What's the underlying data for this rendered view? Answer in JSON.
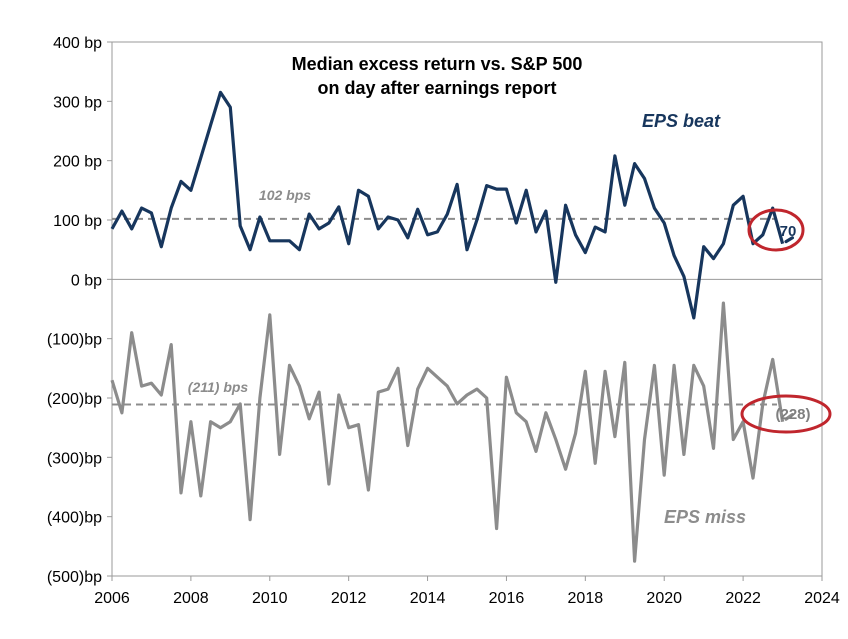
{
  "chart_data": {
    "type": "line",
    "title_line1": "Median excess return vs. S&P 500",
    "title_line2": "on day after earnings report",
    "xlim": [
      2006,
      2024
    ],
    "ylim": [
      -500,
      400
    ],
    "x_ticks": [
      {
        "value": 2006,
        "label": "2006"
      },
      {
        "value": 2008,
        "label": "2008"
      },
      {
        "value": 2010,
        "label": "2010"
      },
      {
        "value": 2012,
        "label": "2012"
      },
      {
        "value": 2014,
        "label": "2014"
      },
      {
        "value": 2016,
        "label": "2016"
      },
      {
        "value": 2018,
        "label": "2018"
      },
      {
        "value": 2020,
        "label": "2020"
      },
      {
        "value": 2022,
        "label": "2022"
      },
      {
        "value": 2024,
        "label": "2024"
      }
    ],
    "y_ticks": [
      {
        "value": 400,
        "label": "400 bp"
      },
      {
        "value": 300,
        "label": "300 bp"
      },
      {
        "value": 200,
        "label": "200 bp"
      },
      {
        "value": 100,
        "label": "100 bp"
      },
      {
        "value": 0,
        "label": "0 bp"
      },
      {
        "value": -100,
        "label": "(100)bp"
      },
      {
        "value": -200,
        "label": "(200)bp"
      },
      {
        "value": -300,
        "label": "(300)bp"
      },
      {
        "value": -400,
        "label": "(400)bp"
      },
      {
        "value": -500,
        "label": "(500)bp"
      }
    ],
    "grid": false,
    "zero_line": true,
    "series": [
      {
        "name": "EPS beat",
        "color": "#17365d",
        "average": {
          "value": 102,
          "label": "102 bps"
        },
        "latest": {
          "value": 70,
          "label": "70"
        },
        "x": [
          2006.0,
          2006.25,
          2006.5,
          2006.75,
          2007.0,
          2007.25,
          2007.5,
          2007.75,
          2008.0,
          2008.25,
          2008.5,
          2008.75,
          2009.0,
          2009.25,
          2009.5,
          2009.75,
          2010.0,
          2010.25,
          2010.5,
          2010.75,
          2011.0,
          2011.25,
          2011.5,
          2011.75,
          2012.0,
          2012.25,
          2012.5,
          2012.75,
          2013.0,
          2013.25,
          2013.5,
          2013.75,
          2014.0,
          2014.25,
          2014.5,
          2014.75,
          2015.0,
          2015.25,
          2015.5,
          2015.75,
          2016.0,
          2016.25,
          2016.5,
          2016.75,
          2017.0,
          2017.25,
          2017.5,
          2017.75,
          2018.0,
          2018.25,
          2018.5,
          2018.75,
          2019.0,
          2019.25,
          2019.5,
          2019.75,
          2020.0,
          2020.25,
          2020.5,
          2020.75,
          2021.0,
          2021.25,
          2021.5,
          2021.75,
          2022.0,
          2022.25,
          2022.5,
          2022.75,
          2023.0,
          2023.25
        ],
        "values": [
          85,
          115,
          85,
          120,
          112,
          55,
          120,
          165,
          150,
          205,
          260,
          315,
          290,
          90,
          50,
          105,
          65,
          65,
          65,
          50,
          110,
          85,
          95,
          122,
          60,
          150,
          140,
          85,
          105,
          100,
          70,
          118,
          75,
          80,
          110,
          160,
          50,
          100,
          158,
          152,
          152,
          95,
          150,
          80,
          115,
          -5,
          125,
          75,
          45,
          88,
          80,
          208,
          125,
          195,
          170,
          120,
          95,
          40,
          5,
          -65,
          55,
          35,
          60,
          125,
          140,
          60,
          75,
          120,
          60,
          70
        ]
      },
      {
        "name": "EPS miss",
        "color": "#8c8c8c",
        "average": {
          "value": -211,
          "label": "(211) bps"
        },
        "latest": {
          "value": -228,
          "label": "(228)"
        },
        "x": [
          2006.0,
          2006.25,
          2006.5,
          2006.75,
          2007.0,
          2007.25,
          2007.5,
          2007.75,
          2008.0,
          2008.25,
          2008.5,
          2008.75,
          2009.0,
          2009.25,
          2009.5,
          2009.75,
          2010.0,
          2010.25,
          2010.5,
          2010.75,
          2011.0,
          2011.25,
          2011.5,
          2011.75,
          2012.0,
          2012.25,
          2012.5,
          2012.75,
          2013.0,
          2013.25,
          2013.5,
          2013.75,
          2014.0,
          2014.25,
          2014.5,
          2014.75,
          2015.0,
          2015.25,
          2015.5,
          2015.75,
          2016.0,
          2016.25,
          2016.5,
          2016.75,
          2017.0,
          2017.25,
          2017.5,
          2017.75,
          2018.0,
          2018.25,
          2018.5,
          2018.75,
          2019.0,
          2019.25,
          2019.5,
          2019.75,
          2020.0,
          2020.25,
          2020.5,
          2020.75,
          2021.0,
          2021.25,
          2021.5,
          2021.75,
          2022.0,
          2022.25,
          2022.5,
          2022.75,
          2023.0,
          2023.25
        ],
        "values": [
          -170,
          -225,
          -90,
          -180,
          -175,
          -195,
          -110,
          -360,
          -240,
          -365,
          -240,
          -250,
          -240,
          -210,
          -405,
          -200,
          -60,
          -295,
          -145,
          -180,
          -235,
          -190,
          -345,
          -195,
          -250,
          -245,
          -355,
          -190,
          -185,
          -150,
          -280,
          -185,
          -150,
          -165,
          -180,
          -210,
          -195,
          -185,
          -200,
          -420,
          -165,
          -225,
          -240,
          -290,
          -225,
          -270,
          -320,
          -260,
          -155,
          -310,
          -155,
          -265,
          -140,
          -475,
          -270,
          -145,
          -330,
          -145,
          -295,
          -145,
          -180,
          -285,
          -40,
          -270,
          -240,
          -335,
          -210,
          -135,
          -240,
          -228
        ]
      }
    ],
    "annotations": [
      {
        "text": "EPS beat",
        "series": 0
      },
      {
        "text": "EPS miss",
        "series": 1
      }
    ]
  }
}
